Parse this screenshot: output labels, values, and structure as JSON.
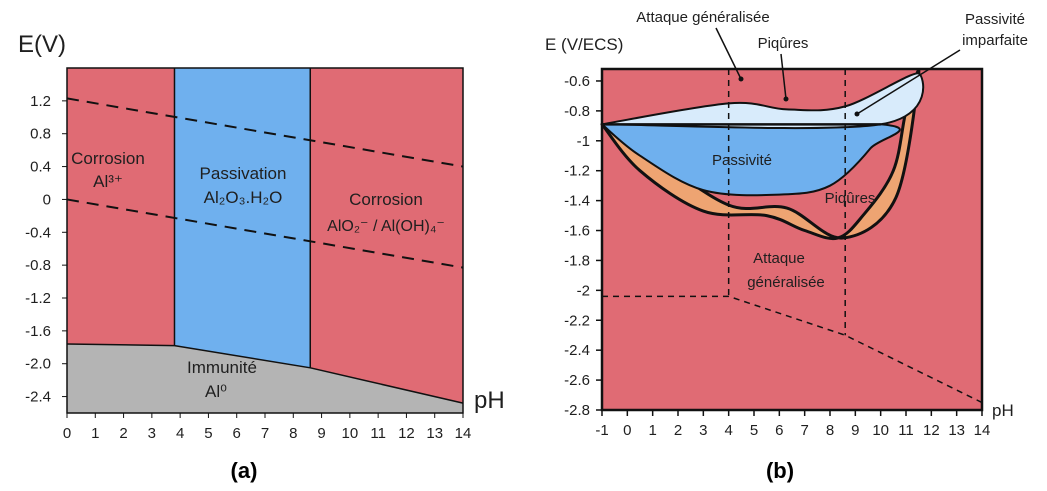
{
  "chart_data": [
    {
      "type": "area",
      "caption": "(a)",
      "ylabel": "E(V)",
      "xlabel": "pH",
      "xlim": [
        0,
        14
      ],
      "ylim": [
        -2.6,
        1.6
      ],
      "xticks": [
        "0",
        "1",
        "2",
        "3",
        "4",
        "5",
        "6",
        "7",
        "8",
        "9",
        "10",
        "11",
        "12",
        "13",
        "14"
      ],
      "yticks": [
        "1.2",
        "0.8",
        "0.4",
        "0",
        "-0.4",
        "-0.8",
        "-1.2",
        "-1.6",
        "-2.0",
        "-2.4"
      ],
      "regions": [
        {
          "name": "Corrosion",
          "species": "Al³⁺",
          "color": "#e06b74",
          "ph_range": [
            0,
            3.8
          ]
        },
        {
          "name": "Passivation",
          "species": "Al₂O₃.H₂O",
          "color": "#6fb0ee",
          "ph_range": [
            3.8,
            8.6
          ]
        },
        {
          "name": "Corrosion",
          "species": "AlO₂⁻ / Al(OH)₄⁻",
          "color": "#e06b74",
          "ph_range": [
            8.6,
            14
          ]
        },
        {
          "name": "Immunité",
          "species": "Al⁰",
          "color": "#b4b4b4",
          "boundary": {
            "ph": [
              0,
              3.8,
              8.6,
              14
            ],
            "E": [
              -1.76,
              -1.78,
              -2.05,
              -2.48
            ]
          }
        }
      ],
      "dashed_lines": [
        {
          "ph": [
            0,
            14
          ],
          "E": [
            1.23,
            0.4
          ]
        },
        {
          "ph": [
            0,
            14
          ],
          "E": [
            0.0,
            -0.83
          ]
        }
      ]
    },
    {
      "type": "area",
      "caption": "(b)",
      "ylabel": "E (V/ECS)",
      "xlabel": "pH",
      "xlim": [
        -1,
        14
      ],
      "ylim": [
        -2.8,
        -0.52
      ],
      "xticks": [
        "-1",
        "0",
        "1",
        "2",
        "3",
        "4",
        "5",
        "6",
        "7",
        "8",
        "9",
        "10",
        "11",
        "12",
        "13",
        "14"
      ],
      "yticks": [
        "-0.6",
        "-0.8",
        "-1",
        "-1.2",
        "-1.4",
        "-1.6",
        "-1.8",
        "-2",
        "-2.2",
        "-2.4",
        "-2.6",
        "-2.8"
      ],
      "background_color": "#e06b74",
      "regions": [
        {
          "name": "Piqûres",
          "color": "#eea472",
          "boundary": {
            "ph": [
              -1,
              1,
              4,
              6.3,
              8.5,
              10.6,
              11.5,
              11,
              10.5,
              9.3,
              8.3,
              7,
              5.5,
              3,
              0.5,
              -1
            ],
            "E": [
              -0.89,
              -1.1,
              -1.43,
              -1.45,
              -1.65,
              -1.38,
              -0.55,
              -0.8,
              -1.2,
              -1.5,
              -1.65,
              -1.6,
              -1.5,
              -1.47,
              -1.2,
              -0.89
            ]
          }
        },
        {
          "name": "Passivité",
          "color": "#6fb0ee",
          "boundary": {
            "ph": [
              -1,
              10,
              9.6,
              8,
              6,
              3,
              0.5,
              -1
            ],
            "E": [
              -0.89,
              -0.89,
              -1.05,
              -1.3,
              -1.36,
              -1.33,
              -1.1,
              -0.89
            ]
          }
        },
        {
          "name": "Passivité imparfaite",
          "color": "#d8ebfb",
          "boundary": {
            "ph": [
              -1,
              4,
              6.3,
              8.6,
              11.5,
              10,
              -1
            ],
            "E": [
              -0.89,
              -0.75,
              -0.79,
              -0.77,
              -0.55,
              -0.89,
              -0.89
            ]
          }
        }
      ],
      "labels": {
        "attack_top": "Attaque généralisée",
        "pitting_top": "Piqûres",
        "imperfect_1": "Passivité",
        "imperfect_2": "imparfaite",
        "passivity": "Passivité",
        "pitting_mid": "Piqûres",
        "attack_mid_1": "Attaque",
        "attack_mid_2": "généralisée"
      },
      "dashed_lines": [
        {
          "ph": [
            4,
            4
          ],
          "E": [
            -0.52,
            -2.04
          ]
        },
        {
          "ph": [
            8.6,
            8.6
          ],
          "E": [
            -0.52,
            -2.3
          ]
        },
        {
          "ph": [
            -1,
            4,
            8.6,
            14
          ],
          "E": [
            -2.04,
            -2.04,
            -2.3,
            -2.75
          ]
        }
      ]
    }
  ]
}
